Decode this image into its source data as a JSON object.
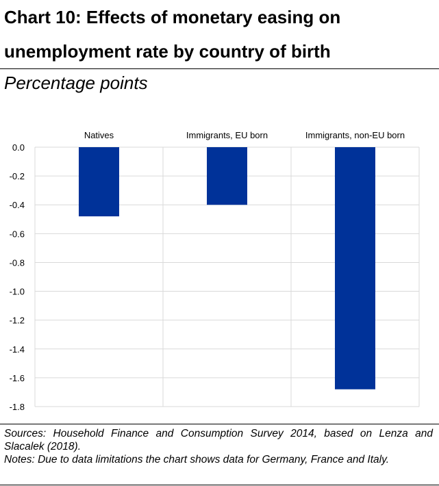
{
  "title": "Chart 10: Effects of monetary easing on unemployment rate by country of birth",
  "subtitle": "Percentage points",
  "sources": "Sources: Household Finance and Consumption Survey 2014, based on Lenza and Slacalek (2018).",
  "notes": "Notes: Due to data limitations the chart shows data for Germany, France and Italy.",
  "colors": {
    "bar": "#003299",
    "grid": "#d9d9d9"
  },
  "chart_data": {
    "type": "bar",
    "categories": [
      "Natives",
      "Immigrants, EU born",
      "Immigrants, non-EU born"
    ],
    "values": [
      -0.48,
      -0.4,
      -1.68
    ],
    "ylim": [
      -1.8,
      0.0
    ],
    "ytick_labels": [
      "0.0",
      "-0.2",
      "-0.4",
      "-0.6",
      "-0.8",
      "-1.0",
      "-1.2",
      "-1.4",
      "-1.6",
      "-1.8"
    ],
    "category_axis_position": "top",
    "grid": true,
    "legend": "none"
  }
}
